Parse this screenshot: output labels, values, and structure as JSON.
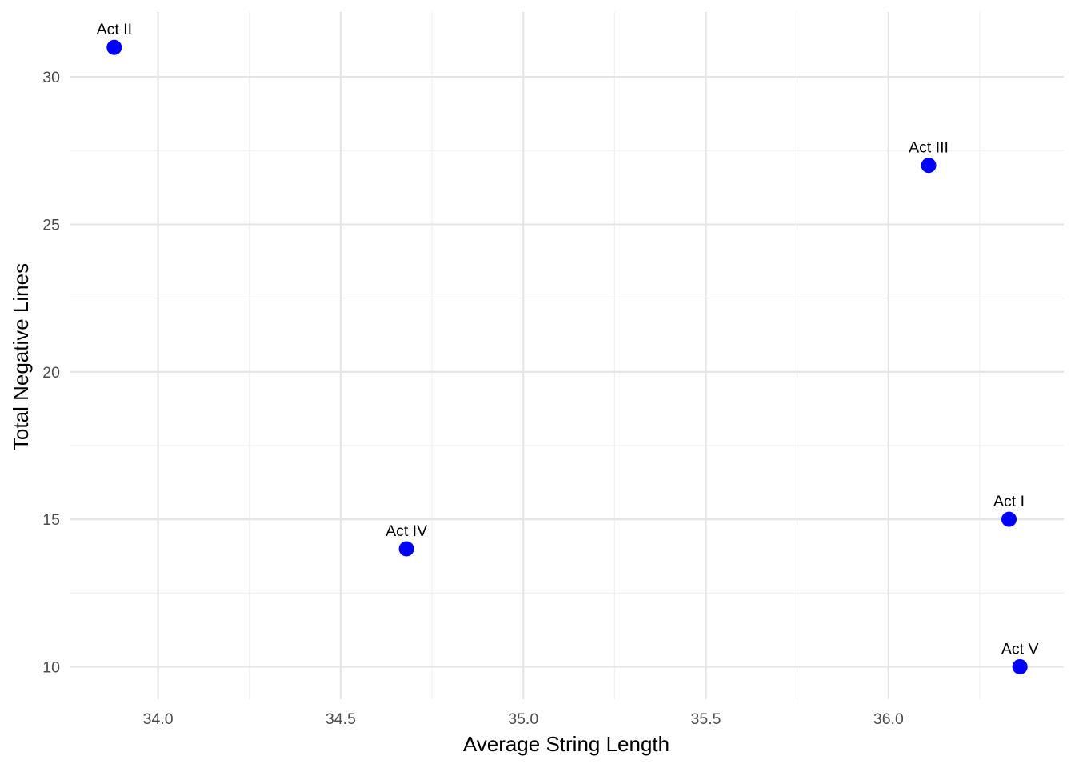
{
  "chart_data": {
    "type": "scatter",
    "title": "",
    "xlabel": "Average String Length",
    "ylabel": "Total Negative Lines",
    "xlim": [
      33.76,
      36.48
    ],
    "ylim": [
      8.9,
      32.2
    ],
    "x_ticks": [
      34.0,
      34.5,
      35.0,
      35.5,
      36.0
    ],
    "x_tick_labels": [
      "34.0",
      "34.5",
      "35.0",
      "35.5",
      "36.0"
    ],
    "x_minor_ticks": [
      34.25,
      34.75,
      35.25,
      35.75,
      36.25
    ],
    "y_ticks": [
      10,
      15,
      20,
      25,
      30
    ],
    "y_tick_labels": [
      "10",
      "15",
      "20",
      "25",
      "30"
    ],
    "y_minor_ticks": [
      12.5,
      17.5,
      22.5,
      27.5
    ],
    "grid": true,
    "legend": "none",
    "point_color": "#0000ff",
    "points": [
      {
        "label": "Act II",
        "x": 33.88,
        "y": 31
      },
      {
        "label": "Act III",
        "x": 36.11,
        "y": 27
      },
      {
        "label": "Act I",
        "x": 36.33,
        "y": 15
      },
      {
        "label": "Act IV",
        "x": 34.68,
        "y": 14
      },
      {
        "label": "Act V",
        "x": 36.36,
        "y": 10
      }
    ]
  }
}
